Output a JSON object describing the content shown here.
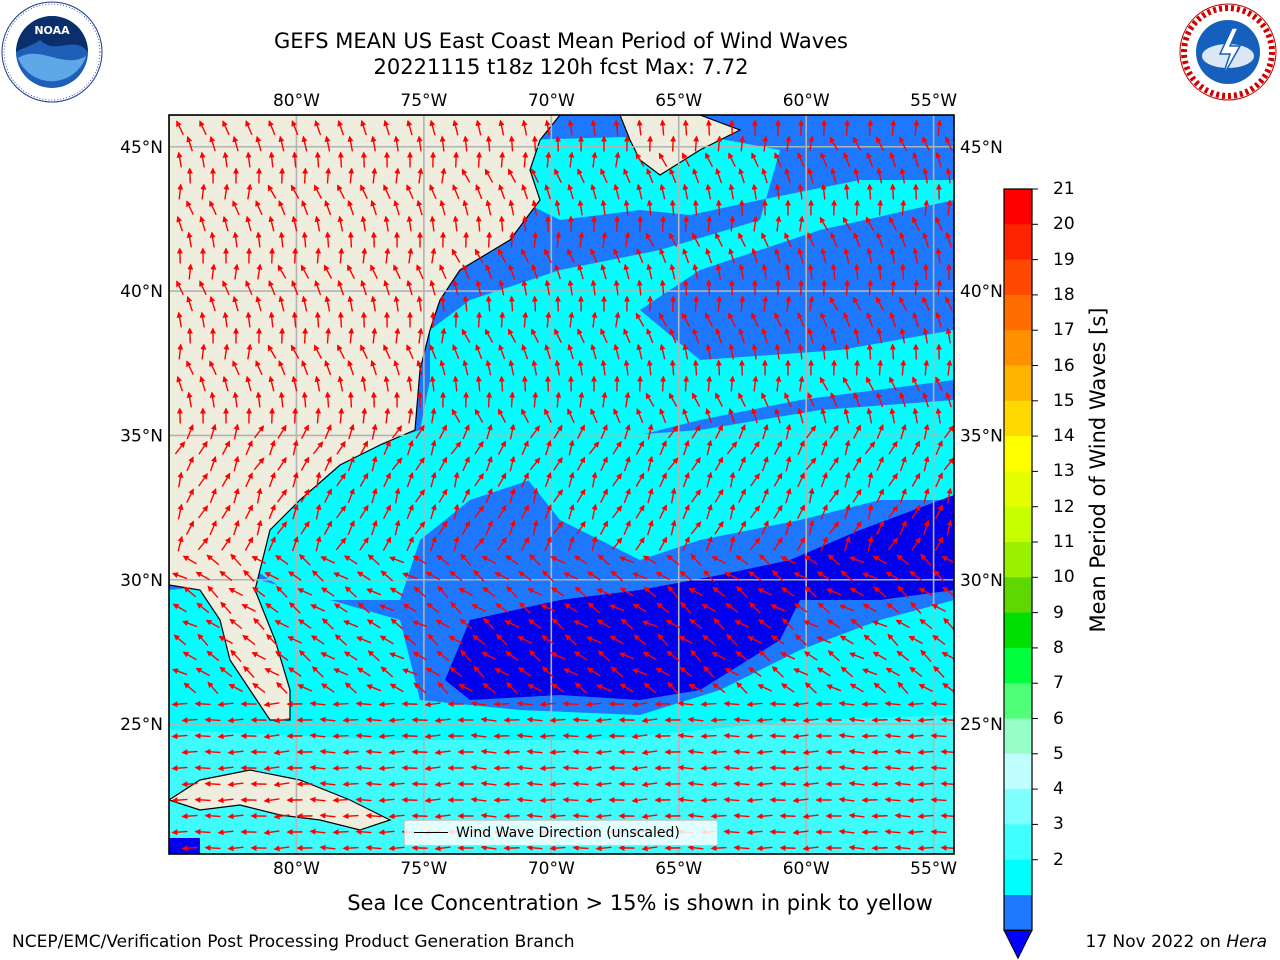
{
  "title": {
    "line1": "GEFS MEAN US East Coast Mean Period of Wind Waves",
    "line2": "20221115 t18z 120h fcst   Max: 7.72"
  },
  "map": {
    "lon_range": [
      -85,
      -54.2
    ],
    "lat_range": [
      20.5,
      46.1
    ],
    "lon_ticks": [
      "80°W",
      "75°W",
      "70°W",
      "65°W",
      "60°W",
      "55°W"
    ],
    "lat_ticks": [
      "45°N",
      "40°N",
      "35°N",
      "30°N",
      "25°N"
    ],
    "land_color": "#efedde",
    "grid_color": "#b3b3b3",
    "arrow_color": "#ff0000",
    "period_colors": [
      "#0000ee",
      "#1e78ff",
      "#00ffff",
      "#3ffbfb"
    ]
  },
  "legend": {
    "label": "Wind Wave Direction (unscaled)"
  },
  "colorbar": {
    "label": "Mean Period of Wind Waves [s]",
    "ticks": [
      "21",
      "20",
      "19",
      "18",
      "17",
      "16",
      "15",
      "14",
      "13",
      "12",
      "11",
      "10",
      "9",
      "8",
      "7",
      "6",
      "5",
      "4",
      "3",
      "2"
    ],
    "extend_color": "#0000ff",
    "colors_top_to_bottom": [
      "#ff0000",
      "#ff2400",
      "#ff4800",
      "#ff6d00",
      "#ff9100",
      "#ffb500",
      "#ffda00",
      "#ffff00",
      "#e6ff00",
      "#c8ff00",
      "#9bf000",
      "#5fd700",
      "#00e000",
      "#00ff3c",
      "#50ff78",
      "#96ffc8",
      "#c0ffff",
      "#7fffff",
      "#40ffff",
      "#00ffff",
      "#1e78ff"
    ]
  },
  "footer": {
    "note": "Sea Ice Concentration > 15% is shown in pink to yellow",
    "left": "NCEP/EMC/Verification Post Processing Product Generation Branch",
    "right_prefix": "17 Nov 2022 on ",
    "right_host": "Hera"
  },
  "logos": {
    "noaa": "NOAA",
    "nws": "NATIONAL WEATHER SERVICE"
  }
}
